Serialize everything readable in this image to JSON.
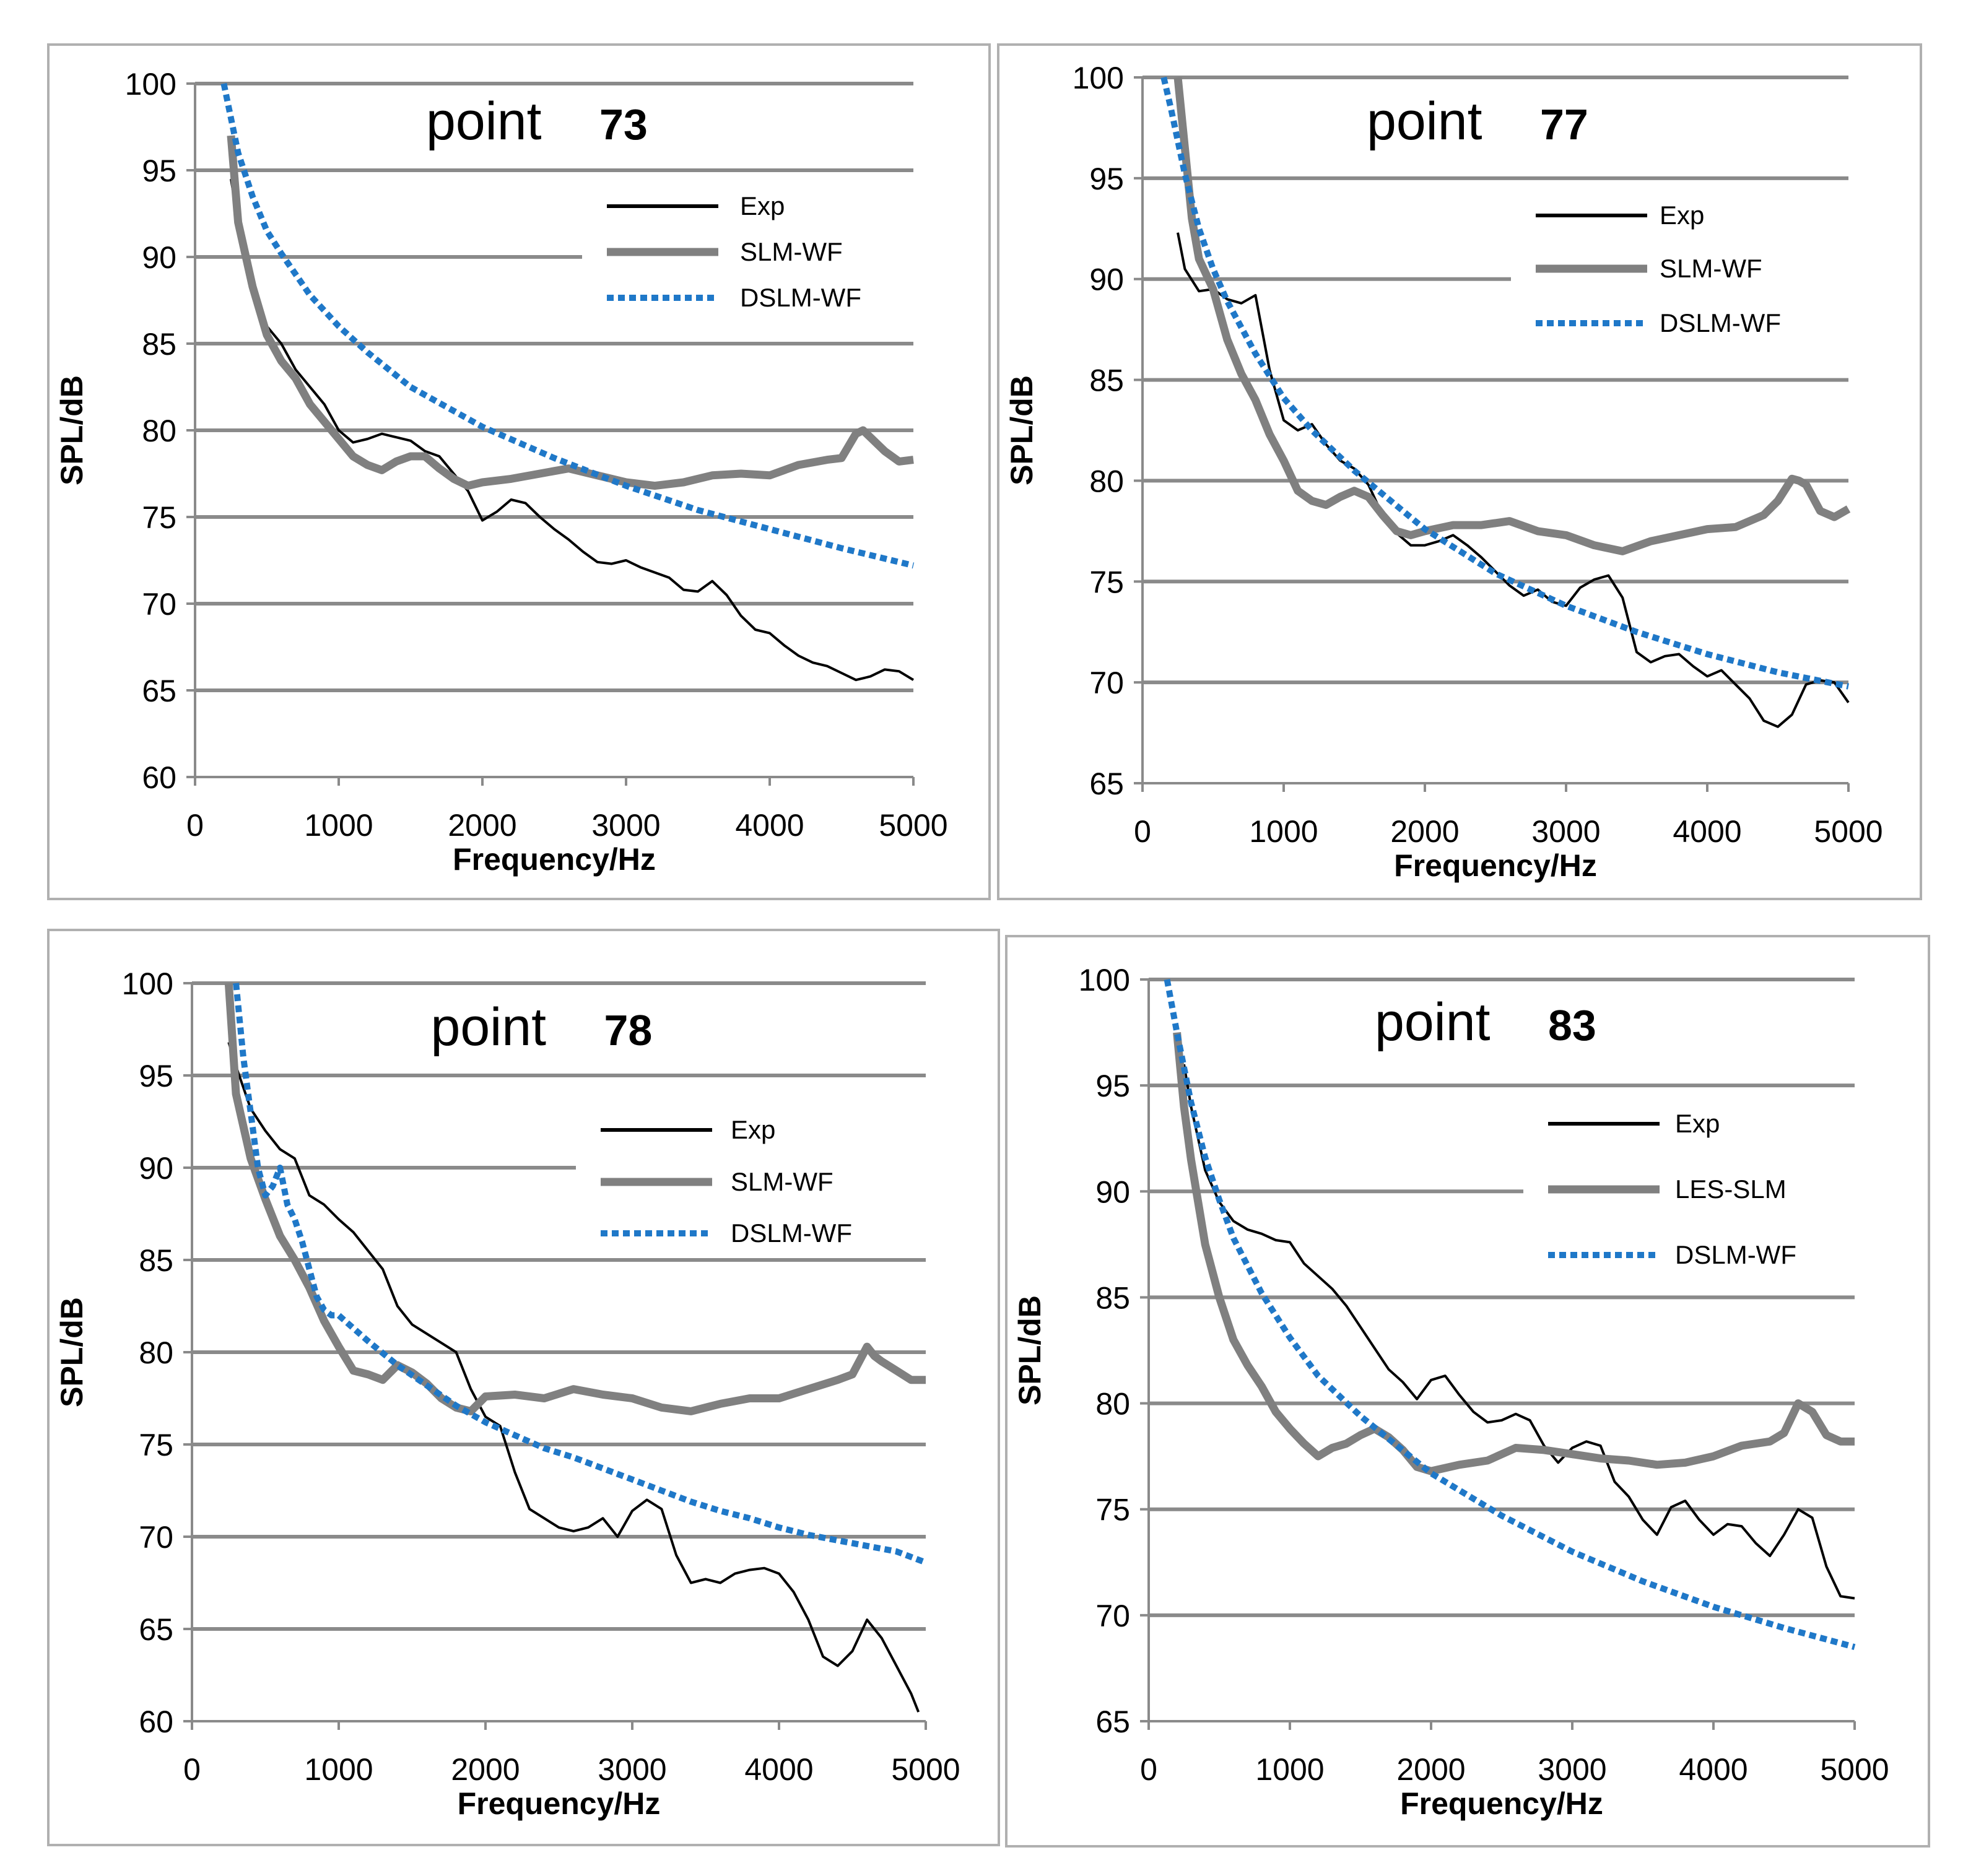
{
  "chart_data": [
    {
      "type": "line",
      "title_word": "point",
      "title_number": "73",
      "xlabel": "Frequency/Hz",
      "ylabel": "SPL/dB",
      "xlim": [
        0,
        5000
      ],
      "ylim": [
        60,
        100
      ],
      "xticks": [
        "0",
        "1000",
        "2000",
        "3000",
        "4000",
        "5000"
      ],
      "yticks": [
        "60",
        "65",
        "70",
        "75",
        "80",
        "85",
        "90",
        "95",
        "100"
      ],
      "legend": "top-right",
      "grid": "horizontal",
      "series": [
        {
          "name": "Exp",
          "style": "exp",
          "color": "#000000",
          "x": [
            250,
            300,
            400,
            500,
            600,
            700,
            800,
            900,
            1000,
            1100,
            1200,
            1300,
            1400,
            1500,
            1600,
            1700,
            1800,
            1900,
            2000,
            2100,
            2200,
            2300,
            2400,
            2500,
            2600,
            2700,
            2800,
            2900,
            3000,
            3100,
            3200,
            3300,
            3400,
            3500,
            3600,
            3700,
            3800,
            3900,
            4000,
            4100,
            4200,
            4300,
            4400,
            4500,
            4600,
            4700,
            4800,
            4900,
            5000
          ],
          "y": [
            94.5,
            92,
            88.5,
            86,
            85,
            83.5,
            82.5,
            81.5,
            80,
            79.3,
            79.5,
            79.8,
            79.6,
            79.4,
            78.8,
            78.5,
            77.5,
            76.5,
            74.8,
            75.3,
            76,
            75.8,
            75,
            74.3,
            73.7,
            73,
            72.4,
            72.3,
            72.5,
            72.1,
            71.8,
            71.5,
            70.8,
            70.7,
            71.3,
            70.5,
            69.3,
            68.5,
            68.3,
            67.6,
            67,
            66.6,
            66.4,
            66,
            65.6,
            65.8,
            66.2,
            66.1,
            65.6
          ]
        },
        {
          "name": "SLM-WF",
          "style": "slm",
          "color": "#808080",
          "x": [
            250,
            300,
            400,
            500,
            600,
            700,
            800,
            900,
            1000,
            1100,
            1200,
            1300,
            1400,
            1500,
            1600,
            1700,
            1800,
            1900,
            2000,
            2200,
            2400,
            2600,
            2800,
            3000,
            3200,
            3400,
            3600,
            3800,
            4000,
            4200,
            4400,
            4500,
            4600,
            4650,
            4700,
            4800,
            4900,
            5000
          ],
          "y": [
            97,
            92,
            88.3,
            85.5,
            84,
            83,
            81.5,
            80.5,
            79.5,
            78.5,
            78,
            77.7,
            78.2,
            78.5,
            78.5,
            77.8,
            77.2,
            76.8,
            77,
            77.2,
            77.5,
            77.8,
            77.4,
            77,
            76.8,
            77,
            77.4,
            77.5,
            77.4,
            78,
            78.3,
            78.4,
            79.8,
            80,
            79.6,
            78.8,
            78.2,
            78.3
          ]
        },
        {
          "name": "DSLM-WF",
          "style": "dslm",
          "color": "#1f78c8",
          "x": [
            200,
            300,
            400,
            500,
            600,
            700,
            800,
            1000,
            1200,
            1500,
            2000,
            2500,
            3000,
            3500,
            4000,
            4500,
            5000
          ],
          "y": [
            100,
            96,
            93.5,
            91.5,
            90.2,
            89,
            87.8,
            86,
            84.5,
            82.5,
            80.2,
            78.4,
            76.8,
            75.4,
            74.3,
            73.2,
            72.2
          ]
        }
      ]
    },
    {
      "type": "line",
      "title_word": "point",
      "title_number": "77",
      "xlabel": "Frequency/Hz",
      "ylabel": "SPL/dB",
      "xlim": [
        0,
        5000
      ],
      "ylim": [
        65,
        100
      ],
      "xticks": [
        "0",
        "1000",
        "2000",
        "3000",
        "4000",
        "5000"
      ],
      "yticks": [
        "65",
        "70",
        "75",
        "80",
        "85",
        "90",
        "95",
        "100"
      ],
      "legend": "top-right",
      "grid": "horizontal",
      "series": [
        {
          "name": "Exp",
          "style": "exp",
          "color": "#000000",
          "x": [
            250,
            300,
            400,
            500,
            600,
            700,
            800,
            900,
            1000,
            1100,
            1200,
            1300,
            1400,
            1500,
            1600,
            1700,
            1800,
            1900,
            2000,
            2100,
            2200,
            2300,
            2400,
            2500,
            2600,
            2700,
            2800,
            2900,
            3000,
            3100,
            3200,
            3300,
            3400,
            3500,
            3600,
            3700,
            3800,
            3900,
            4000,
            4100,
            4200,
            4300,
            4400,
            4500,
            4600,
            4700,
            4800,
            4900,
            5000
          ],
          "y": [
            92.3,
            90.5,
            89.4,
            89.5,
            89,
            88.8,
            89.2,
            85.5,
            83,
            82.5,
            82.8,
            81.8,
            81,
            80.6,
            79.8,
            78.3,
            77.4,
            76.8,
            76.8,
            77,
            77.3,
            76.8,
            76.2,
            75.5,
            74.8,
            74.3,
            74.6,
            74,
            73.8,
            74.7,
            75.1,
            75.3,
            74.2,
            71.5,
            71,
            71.3,
            71.4,
            70.8,
            70.3,
            70.6,
            69.9,
            69.2,
            68.1,
            67.8,
            68.4,
            69.9,
            70.1,
            70,
            69
          ]
        },
        {
          "name": "SLM-WF",
          "style": "slm",
          "color": "#808080",
          "x": [
            250,
            300,
            350,
            400,
            500,
            600,
            700,
            800,
            900,
            1000,
            1100,
            1200,
            1300,
            1400,
            1500,
            1600,
            1700,
            1800,
            1900,
            2000,
            2200,
            2400,
            2600,
            2800,
            3000,
            3200,
            3400,
            3600,
            3800,
            4000,
            4200,
            4400,
            4500,
            4600,
            4650,
            4700,
            4800,
            4900,
            5000
          ],
          "y": [
            100,
            96.5,
            93,
            91,
            89.5,
            87,
            85.3,
            84,
            82.3,
            81,
            79.5,
            79,
            78.8,
            79.2,
            79.5,
            79.2,
            78.3,
            77.5,
            77.3,
            77.5,
            77.8,
            77.8,
            78,
            77.5,
            77.3,
            76.8,
            76.5,
            77,
            77.3,
            77.6,
            77.7,
            78.3,
            79,
            80.1,
            80,
            79.8,
            78.5,
            78.2,
            78.6
          ]
        },
        {
          "name": "DSLM-WF",
          "style": "dslm",
          "color": "#1f78c8",
          "x": [
            150,
            200,
            300,
            400,
            500,
            600,
            800,
            1000,
            1200,
            1500,
            2000,
            2500,
            3000,
            3500,
            4000,
            4500,
            5000
          ],
          "y": [
            100,
            98.5,
            95.2,
            92.5,
            90.5,
            88.9,
            86.3,
            84.1,
            82.5,
            80.5,
            77.6,
            75.4,
            73.8,
            72.5,
            71.4,
            70.5,
            69.8
          ]
        }
      ]
    },
    {
      "type": "line",
      "title_word": "point",
      "title_number": "78",
      "xlabel": "Frequency/Hz",
      "ylabel": "SPL/dB",
      "xlim": [
        0,
        5000
      ],
      "ylim": [
        60,
        100
      ],
      "xticks": [
        "0",
        "1000",
        "2000",
        "3000",
        "4000",
        "5000"
      ],
      "yticks": [
        "60",
        "65",
        "70",
        "75",
        "80",
        "85",
        "90",
        "95",
        "100"
      ],
      "legend": "top-right",
      "grid": "horizontal",
      "series": [
        {
          "name": "Exp",
          "style": "exp",
          "color": "#000000",
          "x": [
            250,
            300,
            400,
            500,
            600,
            700,
            800,
            900,
            1000,
            1100,
            1200,
            1300,
            1400,
            1500,
            1600,
            1700,
            1800,
            1900,
            2000,
            2100,
            2200,
            2300,
            2400,
            2500,
            2600,
            2700,
            2800,
            2900,
            3000,
            3100,
            3200,
            3300,
            3400,
            3500,
            3600,
            3700,
            3800,
            3900,
            4000,
            4100,
            4200,
            4300,
            4400,
            4500,
            4600,
            4700,
            4800,
            4900,
            4950
          ],
          "y": [
            96.8,
            95.5,
            93.2,
            92,
            91,
            90.5,
            88.5,
            88,
            87.2,
            86.5,
            85.5,
            84.5,
            82.5,
            81.5,
            81,
            80.5,
            80,
            78,
            76.5,
            76,
            73.5,
            71.5,
            71,
            70.5,
            70.3,
            70.5,
            71,
            70,
            71.4,
            72,
            71.5,
            69,
            67.5,
            67.7,
            67.5,
            68,
            68.2,
            68.3,
            68,
            67,
            65.5,
            63.5,
            63,
            63.8,
            65.5,
            64.5,
            63,
            61.5,
            60.5
          ]
        },
        {
          "name": "SLM-WF",
          "style": "slm",
          "color": "#808080",
          "x": [
            250,
            300,
            400,
            500,
            600,
            700,
            800,
            900,
            1000,
            1100,
            1200,
            1300,
            1400,
            1500,
            1600,
            1700,
            1800,
            1900,
            2000,
            2200,
            2400,
            2600,
            2800,
            3000,
            3200,
            3400,
            3600,
            3800,
            4000,
            4200,
            4400,
            4500,
            4600,
            4650,
            4700,
            4800,
            4900,
            5000
          ],
          "y": [
            100,
            94,
            90.5,
            88.3,
            86.3,
            85,
            83.5,
            81.7,
            80.3,
            79,
            78.8,
            78.5,
            79.3,
            78.9,
            78.3,
            77.5,
            77,
            76.8,
            77.6,
            77.7,
            77.5,
            78,
            77.7,
            77.5,
            77,
            76.8,
            77.2,
            77.5,
            77.5,
            78,
            78.5,
            78.8,
            80.3,
            79.8,
            79.5,
            79,
            78.5,
            78.5
          ]
        },
        {
          "name": "DSLM-WF",
          "style": "dslm",
          "color": "#1f78c8",
          "x": [
            300,
            350,
            400,
            450,
            500,
            550,
            600,
            650,
            700,
            750,
            800,
            850,
            900,
            950,
            1000,
            1200,
            1400,
            1600,
            1800,
            2000,
            2200,
            2400,
            2600,
            2800,
            3000,
            3200,
            3400,
            3600,
            3800,
            4000,
            4200,
            4400,
            4600,
            4800,
            5000
          ],
          "y": [
            100,
            96,
            93,
            90,
            88.5,
            89,
            90,
            88,
            87.2,
            86,
            84.5,
            83,
            82.3,
            82,
            82,
            80.6,
            79.3,
            78.2,
            77.1,
            76.2,
            75.5,
            74.8,
            74.3,
            73.7,
            73.1,
            72.5,
            71.9,
            71.4,
            71,
            70.5,
            70.1,
            69.8,
            69.5,
            69.2,
            68.6
          ]
        }
      ]
    },
    {
      "type": "line",
      "title_word": "point",
      "title_number": "83",
      "xlabel": "Frequency/Hz",
      "ylabel": "SPL/dB",
      "xlim": [
        0,
        5000
      ],
      "ylim": [
        65,
        100
      ],
      "xticks": [
        "0",
        "1000",
        "2000",
        "3000",
        "4000",
        "5000"
      ],
      "yticks": [
        "65",
        "70",
        "75",
        "80",
        "85",
        "90",
        "95",
        "100"
      ],
      "legend": "top-right",
      "grid": "horizontal",
      "series": [
        {
          "name": "Exp",
          "style": "exp",
          "color": "#000000",
          "x": [
            250,
            300,
            400,
            500,
            600,
            700,
            800,
            900,
            1000,
            1100,
            1200,
            1300,
            1400,
            1500,
            1600,
            1700,
            1800,
            1900,
            2000,
            2100,
            2200,
            2300,
            2400,
            2500,
            2600,
            2700,
            2800,
            2900,
            3000,
            3100,
            3200,
            3300,
            3400,
            3500,
            3600,
            3700,
            3800,
            3900,
            4000,
            4100,
            4200,
            4300,
            4400,
            4500,
            4600,
            4700,
            4800,
            4900,
            5000
          ],
          "y": [
            96,
            94,
            91,
            89.5,
            88.6,
            88.2,
            88,
            87.7,
            87.6,
            86.6,
            86,
            85.4,
            84.6,
            83.6,
            82.6,
            81.6,
            81,
            80.2,
            81.1,
            81.3,
            80.4,
            79.6,
            79.1,
            79.2,
            79.5,
            79.2,
            78,
            77.2,
            77.9,
            78.2,
            78,
            76.3,
            75.6,
            74.5,
            73.8,
            75.1,
            75.4,
            74.5,
            73.8,
            74.3,
            74.2,
            73.4,
            72.8,
            73.8,
            75,
            74.6,
            72.3,
            70.9,
            70.8
          ]
        },
        {
          "name": "LES-SLM",
          "style": "slm",
          "color": "#808080",
          "x": [
            200,
            250,
            300,
            350,
            400,
            500,
            600,
            700,
            800,
            900,
            1000,
            1100,
            1200,
            1300,
            1400,
            1500,
            1600,
            1700,
            1800,
            1900,
            2000,
            2200,
            2400,
            2600,
            2800,
            3000,
            3200,
            3400,
            3600,
            3800,
            4000,
            4200,
            4400,
            4500,
            4600,
            4700,
            4800,
            4900,
            5000
          ],
          "y": [
            97.5,
            94,
            91.5,
            89.5,
            87.5,
            85,
            83,
            81.8,
            80.8,
            79.6,
            78.8,
            78.1,
            77.5,
            77.9,
            78.1,
            78.5,
            78.8,
            78.4,
            77.8,
            77,
            76.8,
            77.1,
            77.3,
            77.9,
            77.8,
            77.6,
            77.4,
            77.3,
            77.1,
            77.2,
            77.5,
            78,
            78.2,
            78.6,
            80,
            79.6,
            78.5,
            78.2,
            78.2
          ]
        },
        {
          "name": "DSLM-WF",
          "style": "dslm",
          "color": "#1f78c8",
          "x": [
            130,
            200,
            300,
            400,
            500,
            600,
            800,
            1000,
            1200,
            1500,
            2000,
            2500,
            3000,
            3500,
            4000,
            4500,
            5000
          ],
          "y": [
            100,
            97.5,
            94.2,
            91.6,
            89.6,
            87.8,
            85.2,
            83.1,
            81.3,
            79.4,
            76.7,
            74.7,
            73,
            71.6,
            70.4,
            69.4,
            68.5
          ]
        }
      ]
    }
  ]
}
